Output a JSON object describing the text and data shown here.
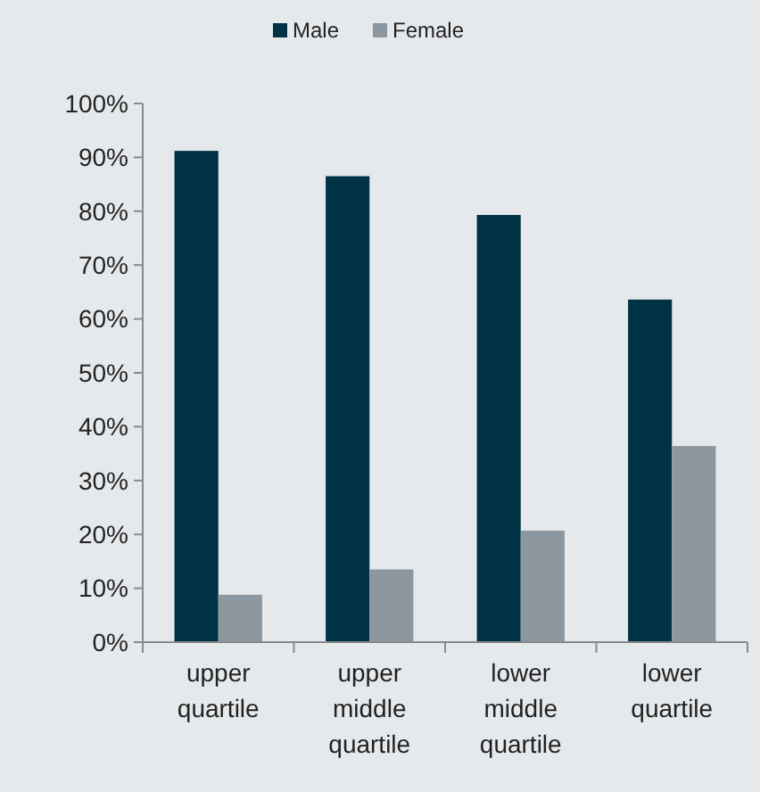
{
  "chart_data": {
    "type": "bar",
    "categories": [
      "upper quartile",
      "upper middle quartile",
      "lower middle quartile",
      "lower quartile"
    ],
    "series": [
      {
        "name": "Male",
        "color": "#003246",
        "values": [
          91.2,
          86.5,
          79.3,
          63.6
        ]
      },
      {
        "name": "Female",
        "color": "#8c979f",
        "values": [
          8.8,
          13.5,
          20.7,
          36.4
        ]
      }
    ],
    "ylim": [
      0,
      100
    ],
    "yticks": [
      {
        "value": 0,
        "label": "0%"
      },
      {
        "value": 10,
        "label": "10%"
      },
      {
        "value": 20,
        "label": "20%"
      },
      {
        "value": 30,
        "label": "30%"
      },
      {
        "value": 40,
        "label": "40%"
      },
      {
        "value": 50,
        "label": "50%"
      },
      {
        "value": 60,
        "label": "60%"
      },
      {
        "value": 70,
        "label": "70%"
      },
      {
        "value": 80,
        "label": "80%"
      },
      {
        "value": 90,
        "label": "90%"
      },
      {
        "value": 100,
        "label": "100%"
      }
    ],
    "legend": "top",
    "grid": false
  }
}
